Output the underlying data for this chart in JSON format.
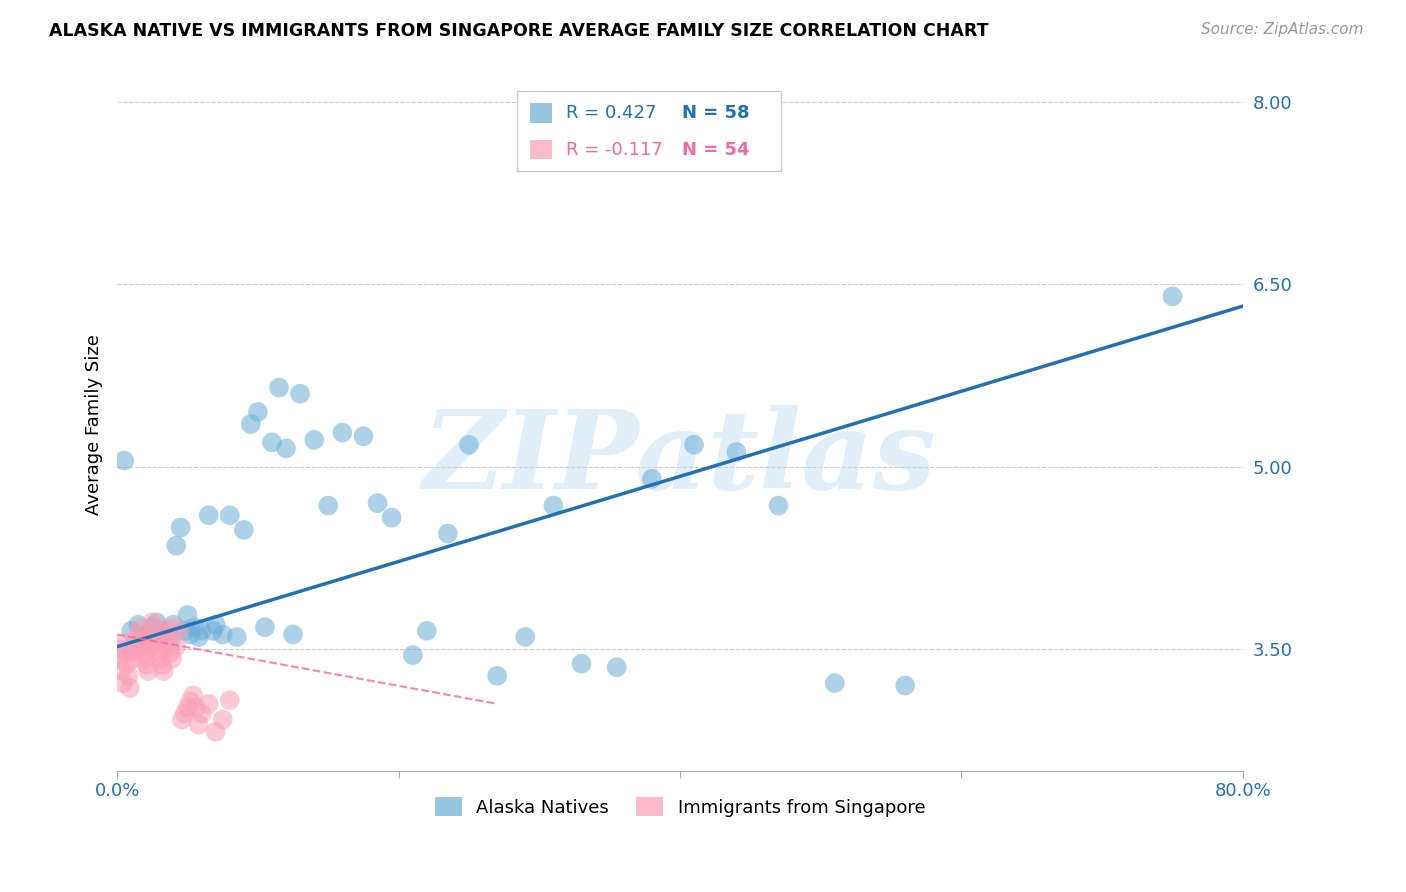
{
  "title": "ALASKA NATIVE VS IMMIGRANTS FROM SINGAPORE AVERAGE FAMILY SIZE CORRELATION CHART",
  "source": "Source: ZipAtlas.com",
  "ylabel": "Average Family Size",
  "xmin": 0.0,
  "xmax": 0.8,
  "ymin": 2.5,
  "ymax": 8.2,
  "yticks": [
    3.5,
    5.0,
    6.5,
    8.0
  ],
  "xticks": [
    0.0,
    0.2,
    0.4,
    0.6,
    0.8
  ],
  "xticklabels": [
    "0.0%",
    "",
    "",
    "",
    "80.0%"
  ],
  "blue_r": 0.427,
  "blue_n": 58,
  "pink_r": -0.117,
  "pink_n": 54,
  "blue_color": "#6baed6",
  "pink_color": "#fa9fb5",
  "blue_line_color": "#2171b5",
  "pink_line_color": "#f768a1",
  "legend_blue_label": "Alaska Natives",
  "legend_pink_label": "Immigrants from Singapore",
  "watermark": "ZIPatlas",
  "blue_scatter_x": [
    0.005,
    0.01,
    0.015,
    0.018,
    0.02,
    0.022,
    0.025,
    0.028,
    0.03,
    0.032,
    0.035,
    0.038,
    0.04,
    0.042,
    0.045,
    0.048,
    0.05,
    0.052,
    0.055,
    0.058,
    0.06,
    0.065,
    0.068,
    0.07,
    0.075,
    0.08,
    0.085,
    0.09,
    0.095,
    0.1,
    0.105,
    0.11,
    0.115,
    0.12,
    0.125,
    0.13,
    0.14,
    0.15,
    0.16,
    0.175,
    0.185,
    0.195,
    0.21,
    0.22,
    0.235,
    0.25,
    0.27,
    0.29,
    0.31,
    0.33,
    0.355,
    0.38,
    0.41,
    0.44,
    0.47,
    0.51,
    0.56,
    0.75
  ],
  "blue_scatter_y": [
    5.05,
    3.65,
    3.7,
    3.6,
    3.58,
    3.62,
    3.68,
    3.72,
    3.58,
    3.65,
    3.6,
    3.58,
    3.7,
    4.35,
    4.5,
    3.65,
    3.78,
    3.62,
    3.68,
    3.6,
    3.65,
    4.6,
    3.65,
    3.7,
    3.62,
    4.6,
    3.6,
    4.48,
    5.35,
    5.45,
    3.68,
    5.2,
    5.65,
    5.15,
    3.62,
    5.6,
    5.22,
    4.68,
    5.28,
    5.25,
    4.7,
    4.58,
    3.45,
    3.65,
    4.45,
    5.18,
    3.28,
    3.6,
    4.68,
    3.38,
    3.35,
    4.9,
    5.18,
    5.12,
    4.68,
    3.22,
    3.2,
    6.4
  ],
  "pink_scatter_x": [
    0.001,
    0.002,
    0.003,
    0.004,
    0.005,
    0.006,
    0.007,
    0.008,
    0.009,
    0.01,
    0.011,
    0.012,
    0.013,
    0.014,
    0.015,
    0.016,
    0.017,
    0.018,
    0.019,
    0.02,
    0.021,
    0.022,
    0.023,
    0.024,
    0.025,
    0.026,
    0.027,
    0.028,
    0.029,
    0.03,
    0.031,
    0.032,
    0.033,
    0.034,
    0.035,
    0.036,
    0.037,
    0.038,
    0.039,
    0.04,
    0.042,
    0.044,
    0.046,
    0.048,
    0.05,
    0.052,
    0.054,
    0.056,
    0.058,
    0.06,
    0.065,
    0.07,
    0.075,
    0.08
  ],
  "pink_scatter_y": [
    3.5,
    3.42,
    3.32,
    3.22,
    3.55,
    3.47,
    3.38,
    3.28,
    3.18,
    3.52,
    3.48,
    3.42,
    3.57,
    3.52,
    3.62,
    3.67,
    3.57,
    3.52,
    3.47,
    3.42,
    3.37,
    3.32,
    3.57,
    3.52,
    3.72,
    3.67,
    3.62,
    3.57,
    3.52,
    3.47,
    3.42,
    3.37,
    3.32,
    3.67,
    3.62,
    3.57,
    3.52,
    3.47,
    3.42,
    3.67,
    3.52,
    3.65,
    2.92,
    2.97,
    3.02,
    3.07,
    3.12,
    3.02,
    2.88,
    2.97,
    3.05,
    2.82,
    2.92,
    3.08
  ],
  "blue_line_x0": 0.0,
  "blue_line_x1": 0.8,
  "blue_line_y0": 3.52,
  "blue_line_y1": 6.32,
  "pink_line_x0": 0.0,
  "pink_line_x1": 0.27,
  "pink_line_y0": 3.62,
  "pink_line_y1": 3.05
}
